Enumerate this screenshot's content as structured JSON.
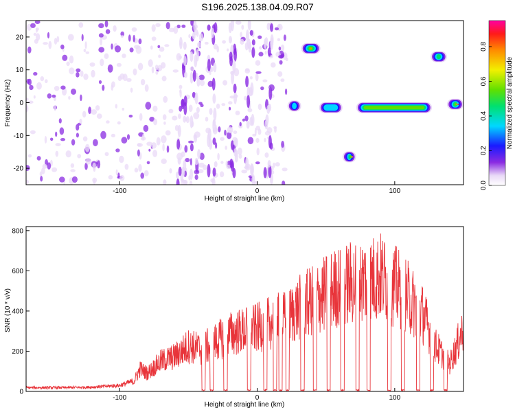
{
  "title": "S196.2025.138.04.09.R07",
  "chart_data": [
    {
      "type": "heatmap",
      "xlabel": "Height of straight line (km)",
      "ylabel": "Frequency (Hz)",
      "xlim": [
        -168,
        150
      ],
      "ylim": [
        -25,
        25
      ],
      "xticks": [
        -100,
        0,
        100
      ],
      "yticks": [
        -20,
        -10,
        0,
        10,
        20
      ],
      "colorbar": {
        "label": "Normalized spectral amplitude",
        "range": [
          0,
          0.95
        ],
        "ticks": [
          0.0,
          0.2,
          0.4,
          0.6,
          0.8
        ]
      },
      "bright_features": [
        {
          "x_range": [
            22,
            32
          ],
          "freq": -1,
          "amplitude": 0.45
        },
        {
          "x_range": [
            32,
            46
          ],
          "freq": 16.5,
          "amplitude": 0.85
        },
        {
          "x_range": [
            45,
            62
          ],
          "freq": -1.5,
          "amplitude": 0.4
        },
        {
          "x_range": [
            62,
            72
          ],
          "freq": -16.5,
          "amplitude": 0.85
        },
        {
          "x_range": [
            72,
            127
          ],
          "freq": -1.5,
          "amplitude": 0.7
        },
        {
          "x_range": [
            126,
            138
          ],
          "freq": 14,
          "amplitude": 0.5
        },
        {
          "x_range": [
            138,
            150
          ],
          "freq": -0.5,
          "amplitude": 0.9
        }
      ]
    },
    {
      "type": "line",
      "xlabel": "Height of straight line (km)",
      "ylabel": "SNR (10 * v/v)",
      "xlim": [
        -168,
        150
      ],
      "ylim": [
        0,
        820
      ],
      "xticks": [
        -100,
        0,
        100
      ],
      "yticks": [
        0,
        200,
        400,
        600,
        800
      ],
      "color": "#e8343a",
      "envelope_x": [
        -168,
        -140,
        -120,
        -100,
        -90,
        -85,
        -80,
        -70,
        -60,
        -50,
        -40,
        -30,
        -20,
        -10,
        0,
        10,
        20,
        30,
        40,
        50,
        60,
        70,
        80,
        90,
        100,
        110,
        120,
        130,
        140,
        150
      ],
      "envelope_y": [
        22,
        22,
        25,
        35,
        60,
        150,
        120,
        200,
        230,
        300,
        280,
        330,
        380,
        400,
        420,
        460,
        480,
        550,
        600,
        650,
        700,
        720,
        740,
        760,
        700,
        620,
        520,
        300,
        180,
        420
      ],
      "dropout_x": [
        -39,
        -33,
        -23,
        -6,
        6,
        13,
        17,
        22,
        33,
        42,
        52,
        62,
        73,
        81,
        96,
        106,
        117,
        127,
        137
      ]
    }
  ]
}
